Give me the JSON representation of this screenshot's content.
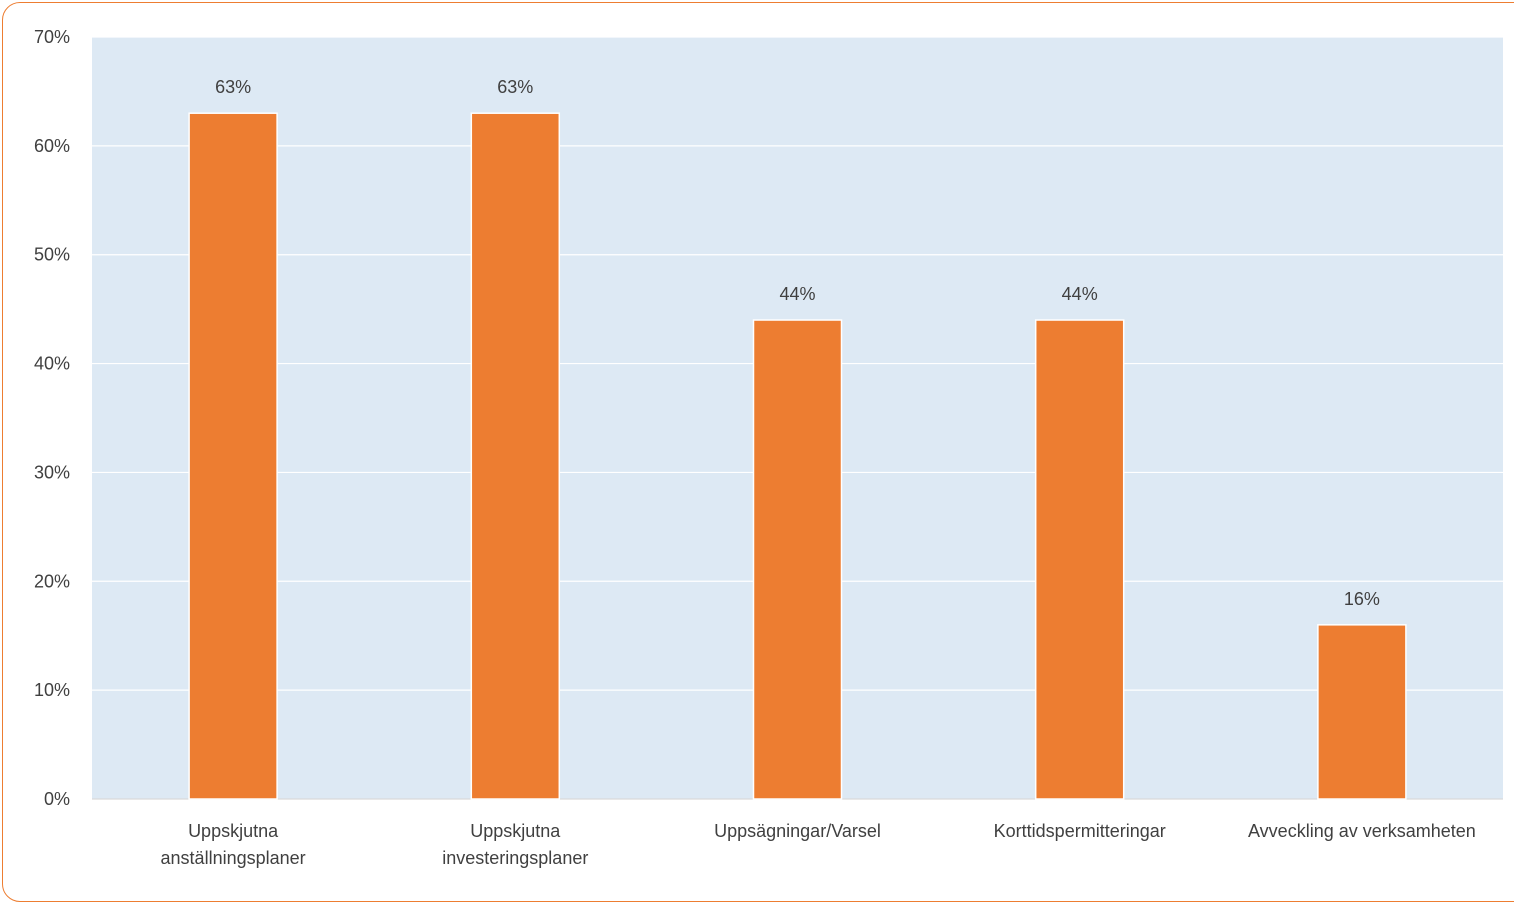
{
  "colors": {
    "plot_background": "#dde9f4",
    "bar": "#ed7d31",
    "bar_stroke": "#ffffff",
    "gridline": "#ffffff",
    "text": "#404040",
    "border": "#ed7d31"
  },
  "chart_data": {
    "type": "bar",
    "title": "",
    "xlabel": "",
    "ylabel": "",
    "ylim": [
      0,
      70
    ],
    "y_tick_step": 10,
    "y_ticks": [
      "0%",
      "10%",
      "20%",
      "30%",
      "40%",
      "50%",
      "60%",
      "70%"
    ],
    "grid": true,
    "legend": "none",
    "categories": [
      [
        "Uppskjutna",
        "anställningsplaner"
      ],
      [
        "Uppskjutna",
        "investeringsplaner"
      ],
      [
        "Uppsägningar/Varsel"
      ],
      [
        "Korttidspermitteringar"
      ],
      [
        "Avveckling av verksamheten"
      ]
    ],
    "values": [
      63,
      63,
      44,
      44,
      16
    ],
    "data_labels": [
      "63%",
      "63%",
      "44%",
      "44%",
      "16%"
    ]
  }
}
